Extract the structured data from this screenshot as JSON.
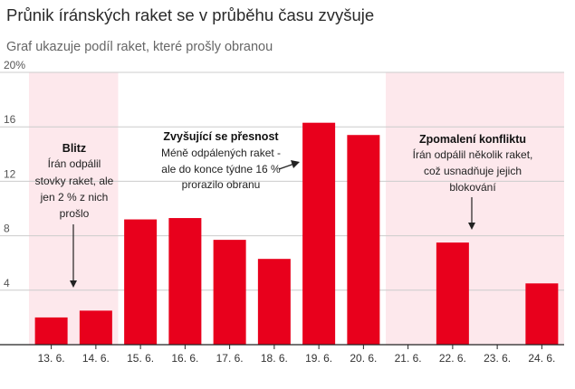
{
  "header": {
    "title": "Průnik íránských raket se v průběhu času zvyšuje",
    "subtitle": "Graf ukazuje podíl raket, které prošly obranou"
  },
  "colors": {
    "bar": "#e8001c",
    "band": "#fde8ec",
    "grid": "#cccccc",
    "axis": "#222222"
  },
  "chart_data": {
    "type": "bar",
    "title": "Průnik íránských raket se v průběhu času zvyšuje",
    "subtitle": "Graf ukazuje podíl raket, které prošly obranou",
    "xlabel": "",
    "ylabel": "",
    "ylim": [
      0,
      20
    ],
    "y_ticks": [
      "20%",
      "16",
      "12",
      "8",
      "4"
    ],
    "y_tick_values": [
      20,
      16,
      12,
      8,
      4
    ],
    "categories": [
      "13. 6.",
      "14. 6.",
      "15. 6.",
      "16. 6.",
      "17. 6.",
      "18. 6.",
      "19. 6.",
      "20. 6.",
      "21. 6.",
      "22. 6.",
      "23. 6.",
      "24. 6."
    ],
    "values": [
      2.0,
      2.5,
      9.2,
      9.3,
      7.7,
      6.3,
      16.3,
      15.4,
      0,
      7.5,
      0,
      4.5
    ],
    "highlight_ranges": [
      {
        "from": "13. 6.",
        "to": "14. 6."
      },
      {
        "from": "21. 6.",
        "to": "24. 6."
      }
    ],
    "annotations": [
      {
        "heading": "Blitz",
        "lines": [
          "Írán odpálil",
          "stovky raket, ale",
          "jen 2 % z nich",
          "prošlo"
        ]
      },
      {
        "heading": "Zvyšující se přesnost",
        "lines": [
          "Méně odpálených raket -",
          "ale do konce týdne 16 %",
          "prorazilo obranu"
        ]
      },
      {
        "heading": "Zpomalení konfliktu",
        "lines": [
          "Írán odpálil několik raket,",
          "což usnadňuje jejich",
          "blokování"
        ]
      }
    ]
  }
}
